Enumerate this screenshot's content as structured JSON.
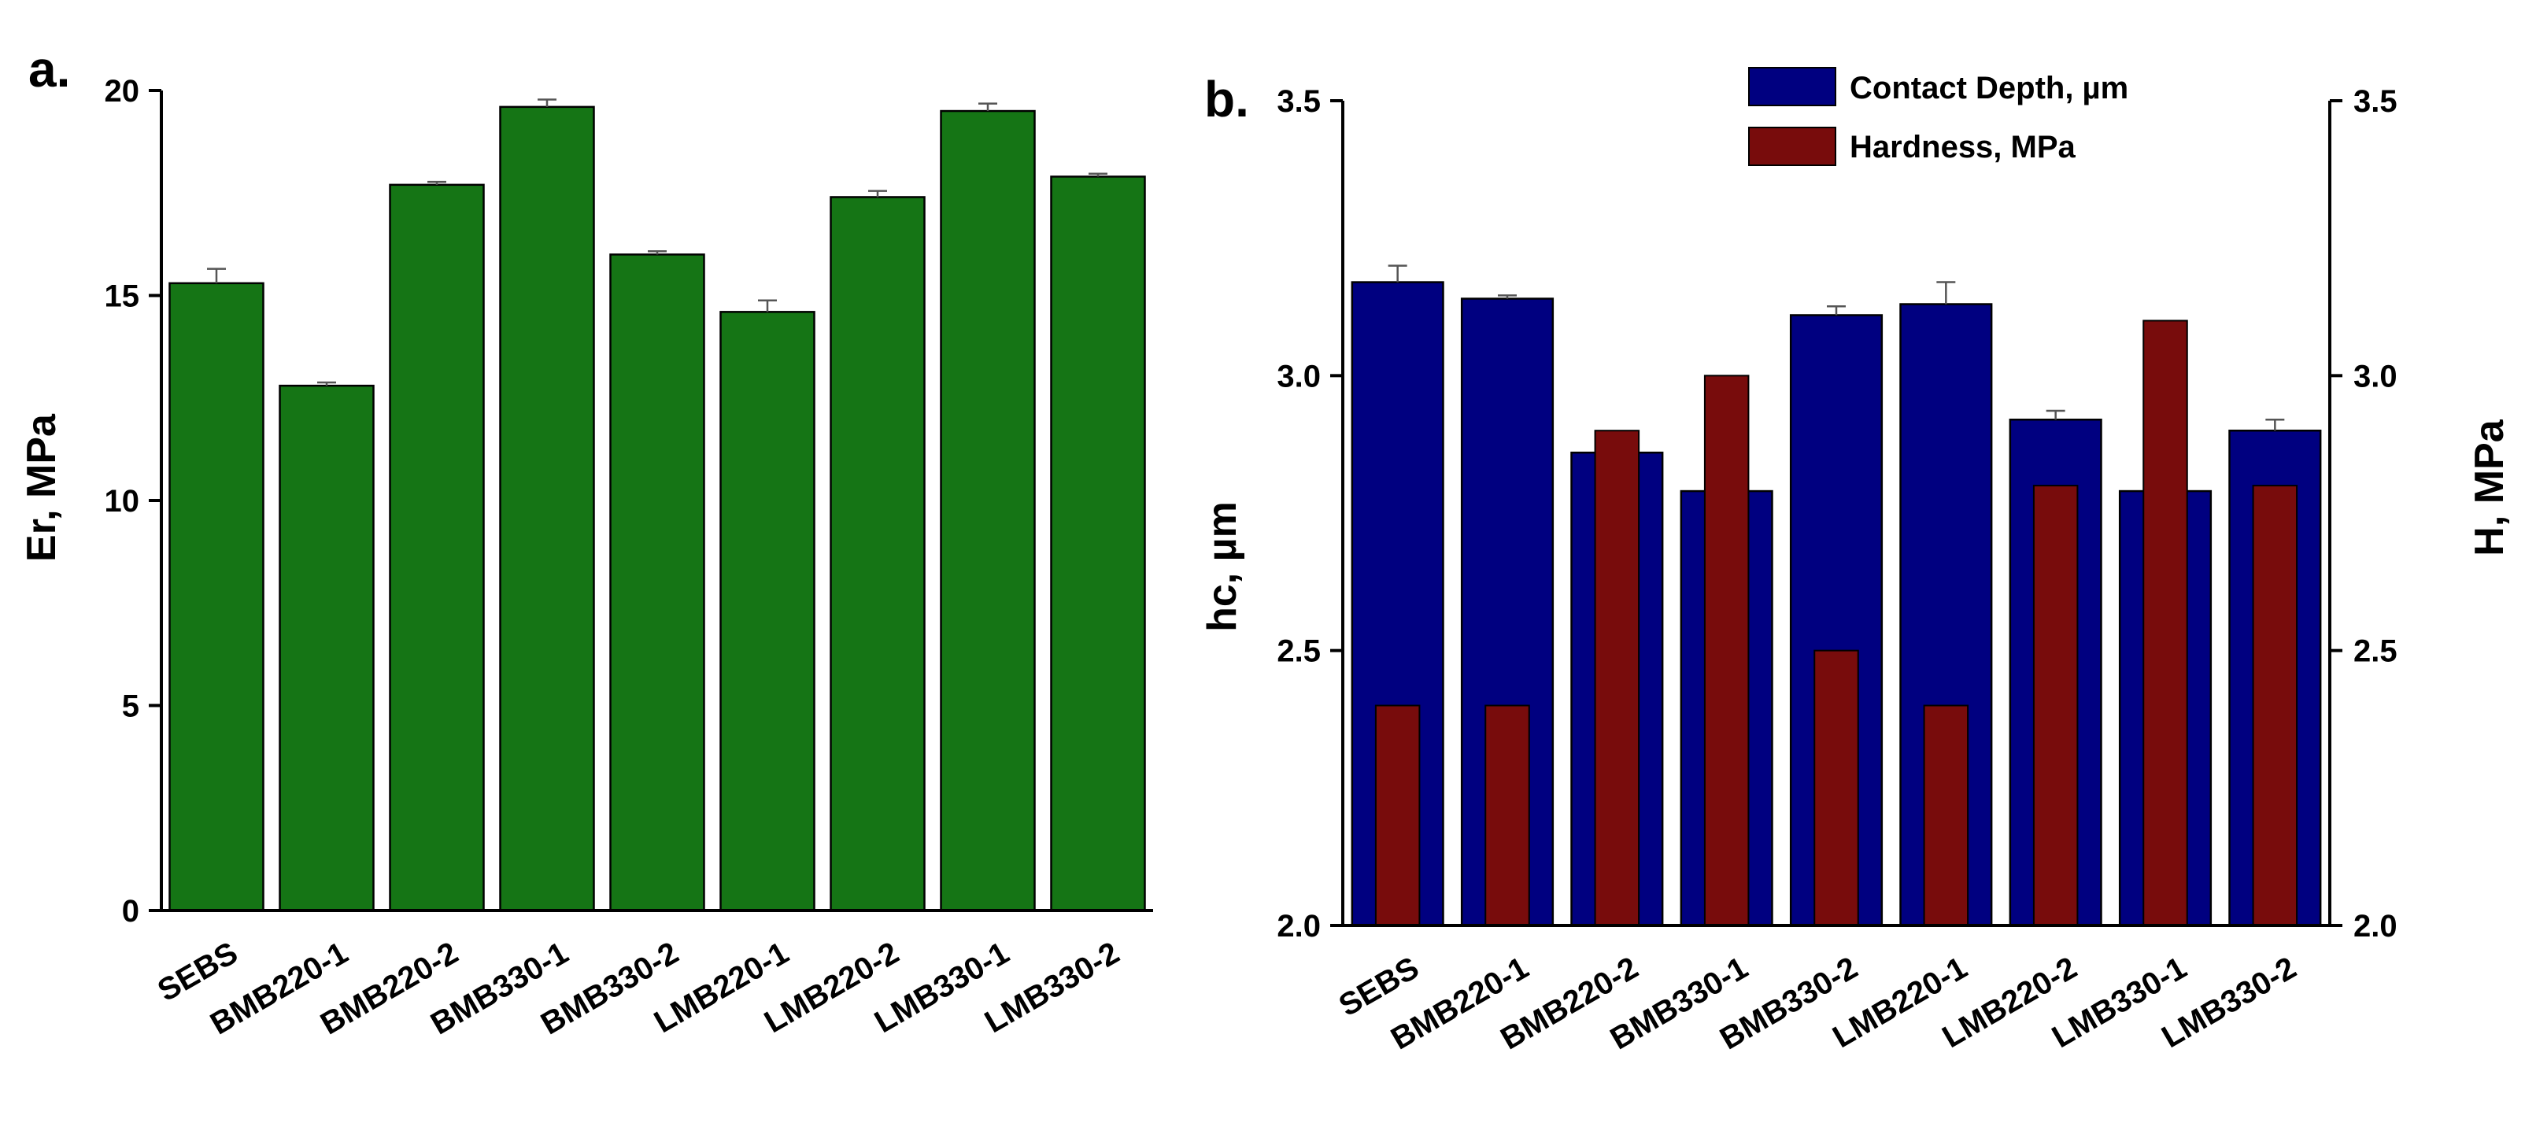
{
  "chart_data": [
    {
      "panel": "a.",
      "type": "bar",
      "categories": [
        "SEBS",
        "BMB220-1",
        "BMB220-2",
        "BMB330-1",
        "BMB330-2",
        "LMB220-1",
        "LMB220-2",
        "LMB330-1",
        "LMB330-2"
      ],
      "series": [
        {
          "name": "Er",
          "color": "#157515",
          "values": [
            15.3,
            12.8,
            17.7,
            19.6,
            16.0,
            14.6,
            17.4,
            19.5,
            17.9
          ],
          "errors": [
            0.35,
            0.08,
            0.07,
            0.18,
            0.08,
            0.28,
            0.15,
            0.18,
            0.07
          ]
        }
      ],
      "xlabel": "",
      "ylabel": "Er, MPa",
      "ylim": [
        0,
        20
      ],
      "yticks": [
        "0",
        "5",
        "10",
        "15",
        "20"
      ],
      "ytick_values": [
        0,
        5,
        10,
        15,
        20
      ]
    },
    {
      "panel": "b.",
      "type": "bar",
      "categories": [
        "SEBS",
        "BMB220-1",
        "BMB220-2",
        "BMB330-1",
        "BMB330-2",
        "LMB220-1",
        "LMB220-2",
        "LMB330-1",
        "LMB330-2"
      ],
      "series": [
        {
          "name": "Contact Depth, µm",
          "axis": "left",
          "color": "#000080",
          "values": [
            3.17,
            3.14,
            2.86,
            2.79,
            3.11,
            3.13,
            2.92,
            2.79,
            2.9
          ],
          "errors": [
            0.03,
            0.006,
            0.0,
            0.0,
            0.016,
            0.04,
            0.016,
            0.0,
            0.02
          ]
        },
        {
          "name": "Hardness, MPa",
          "axis": "right",
          "color": "#780c0c",
          "values": [
            2.4,
            2.4,
            2.9,
            3.0,
            2.5,
            2.4,
            2.8,
            3.1,
            2.8
          ]
        }
      ],
      "xlabel": "",
      "ylabel": "hc, µm",
      "ylabel_right": "H, MPa",
      "ylim": [
        2.0,
        3.5
      ],
      "ylim_right": [
        2.0,
        3.5
      ],
      "yticks": [
        "2.0",
        "2.5",
        "3.0",
        "3.5"
      ],
      "ytick_values": [
        2.0,
        2.5,
        3.0,
        3.5
      ],
      "legend": "top-center"
    }
  ]
}
